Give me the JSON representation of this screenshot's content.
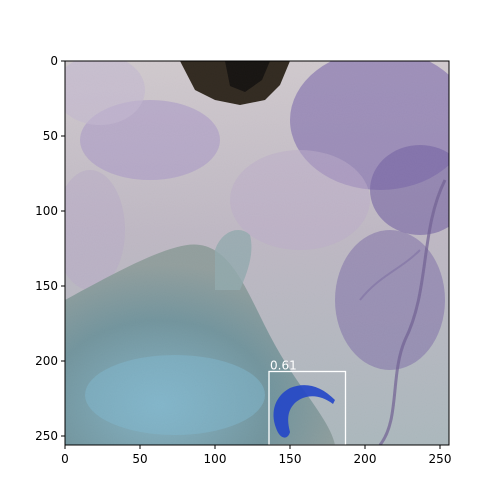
{
  "image": {
    "description_colors": {
      "sky_top": "#c9c2c8",
      "foliage_purple": "#7a68a8",
      "foliage_light": "#d8d2dc",
      "dark_patch": "#1f1a14",
      "water_teal": "#6f97a2",
      "water_light": "#8fb2bf"
    }
  },
  "axes": {
    "xlim": [
      0,
      256
    ],
    "ylim": [
      256,
      0
    ],
    "x_ticks": [
      "0",
      "50",
      "100",
      "150",
      "200",
      "250"
    ],
    "y_ticks": [
      "0",
      "50",
      "100",
      "150",
      "200",
      "250"
    ],
    "x_tick_values": [
      0,
      50,
      100,
      150,
      200,
      250
    ],
    "y_tick_values": [
      0,
      50,
      100,
      150,
      200,
      250
    ]
  },
  "detection": {
    "score": "0.61",
    "box": {
      "x0": 136,
      "y0": 207,
      "x1": 187,
      "y1": 256
    },
    "box_color": "#ffffff",
    "mask_color": "#2346c8"
  }
}
